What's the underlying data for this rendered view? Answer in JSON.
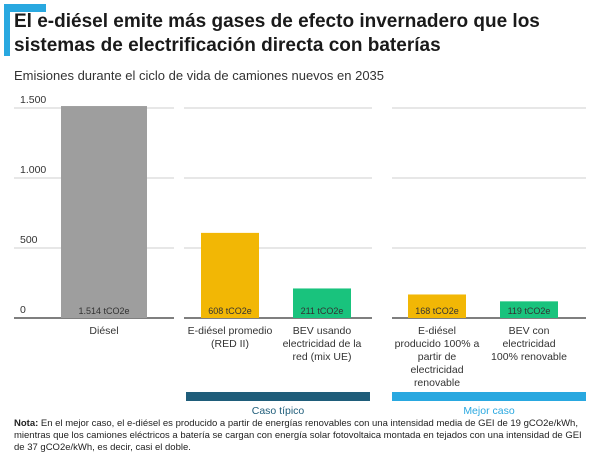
{
  "header": {
    "title": "El e-diésel emite más gases de efecto invernadero que los sistemas de electrificación directa con baterías",
    "subtitle": "Emisiones durante el ciclo de vida de camiones nuevos en 2035"
  },
  "colors": {
    "accent": "#29a8e0",
    "diesel": "#9e9e9e",
    "ediesel": "#f2b705",
    "bev": "#19c37d",
    "typical_band": "#1f5d7a",
    "best_band": "#29a8e0",
    "grid": "#cfcfcf"
  },
  "chart_data": {
    "type": "bar",
    "unit": "tCO2e",
    "ylim": [
      0,
      1600
    ],
    "yticks": [
      {
        "value": 0,
        "label": "0"
      },
      {
        "value": 500,
        "label": "500"
      },
      {
        "value": 1000,
        "label": "1.000"
      },
      {
        "value": 1500,
        "label": "1.500"
      }
    ],
    "grid": true,
    "groups": [
      {
        "name": "",
        "bars": [
          {
            "category": "Diésel",
            "value": 1514,
            "label": "1.514 tCO2e",
            "color_key": "diesel"
          }
        ]
      },
      {
        "name": "Caso típico",
        "band_color_key": "typical_band",
        "bars": [
          {
            "category": "E-diésel promedio (RED II)",
            "value": 608,
            "label": "608 tCO2e",
            "color_key": "ediesel"
          },
          {
            "category": "BEV usando electricidad de la red (mix UE)",
            "value": 211,
            "label": "211 tCO2e",
            "color_key": "bev"
          }
        ]
      },
      {
        "name": "Mejor caso",
        "band_color_key": "best_band",
        "bars": [
          {
            "category": "E-diésel producido 100% a partir de electricidad renovable",
            "value": 168,
            "label": "168 tCO2e",
            "color_key": "ediesel"
          },
          {
            "category": "BEV con electricidad 100% renovable",
            "value": 119,
            "label": "119 tCO2e",
            "color_key": "bev"
          }
        ]
      }
    ]
  },
  "note": {
    "label": "Nota:",
    "text": "En el mejor caso, el e-diésel es producido a partir de energías renovables con una intensidad media de GEI de 19 gCO2e/kWh, mientras que los camiones eléctricos a batería se cargan con energía solar fotovoltaica montada en tejados con una intensidad de GEI de 37 gCO2e/kWh, es decir, casi el doble."
  }
}
